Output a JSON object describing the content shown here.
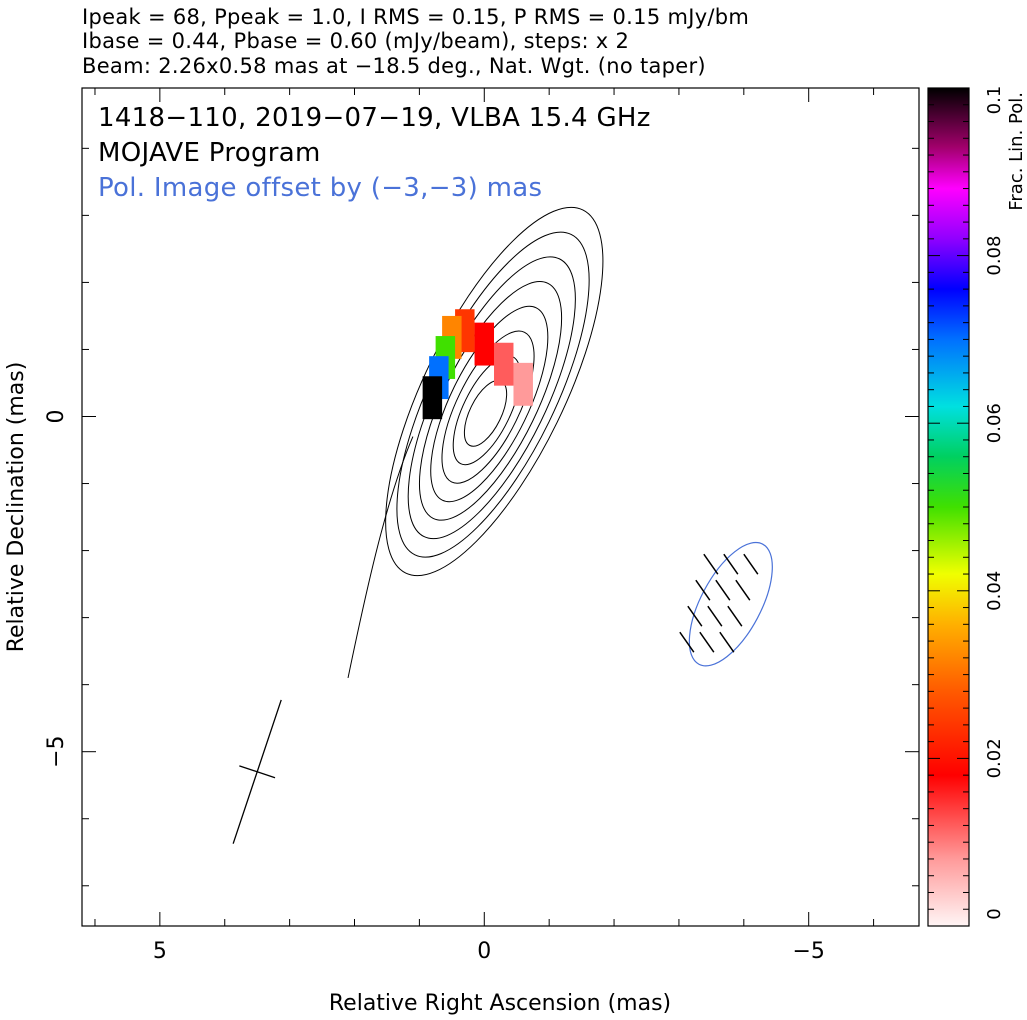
{
  "header_lines": [
    "Ipeak = 68, Ppeak = 1.0, I RMS = 0.15, P RMS = 0.15 mJy/bm",
    "Ibase = 0.44, Pbase = 0.60 (mJy/beam), steps: x 2",
    "Beam: 2.26x0.58 mas at −18.5 deg., Nat. Wgt. (no taper)"
  ],
  "annotations": {
    "source_line": "1418−110, 2019−07−19, VLBA 15.4 GHz",
    "program_line": "MOJAVE Program",
    "offset_line": "Pol. Image offset by (−3,−3) mas",
    "offset_color": "#4a72d8"
  },
  "chart_data": {
    "type": "contour",
    "xlabel": "Relative Right Ascension (mas)",
    "ylabel": "Relative Declination (mas)",
    "xlim": [
      6.2,
      -6.7
    ],
    "ylim": [
      -7.6,
      4.9
    ],
    "x_ticks": [
      5,
      0,
      -5
    ],
    "x_tick_labels": [
      "5",
      "0",
      "−5"
    ],
    "y_ticks": [
      0,
      -5
    ],
    "y_tick_labels": [
      "0",
      "−5"
    ],
    "colorbar": {
      "label": "Frac. Lin. Pol.",
      "range": [
        0,
        0.1
      ],
      "ticks": [
        0,
        0.02,
        0.04,
        0.06,
        0.08,
        0.1
      ],
      "tick_labels": [
        "0",
        "0.02",
        "0.04",
        "0.06",
        "0.08",
        "0.1"
      ]
    },
    "stokes_i_contours_mJy_per_beam": [
      0.44,
      0.88,
      1.76,
      3.52,
      7.04,
      14.08,
      28.16,
      56.32
    ],
    "polarized_intensity_contour_mJy_per_beam": 0.6,
    "beam": {
      "major_mas": 2.26,
      "minor_mas": 0.58,
      "pa_deg": -18.5
    },
    "frac_pol_pixels": [
      {
        "x": -0.6,
        "y": 0.6,
        "fp": 0.008
      },
      {
        "x": -0.3,
        "y": 0.9,
        "fp": 0.012
      },
      {
        "x": 0.0,
        "y": 1.2,
        "fp": 0.018
      },
      {
        "x": 0.3,
        "y": 1.4,
        "fp": 0.024
      },
      {
        "x": 0.5,
        "y": 1.3,
        "fp": 0.032
      },
      {
        "x": 0.6,
        "y": 1.0,
        "fp": 0.05
      },
      {
        "x": 0.7,
        "y": 0.7,
        "fp": 0.07
      },
      {
        "x": 0.8,
        "y": 0.4,
        "fp": 0.1
      }
    ],
    "evpa_sticks_count": 12
  }
}
